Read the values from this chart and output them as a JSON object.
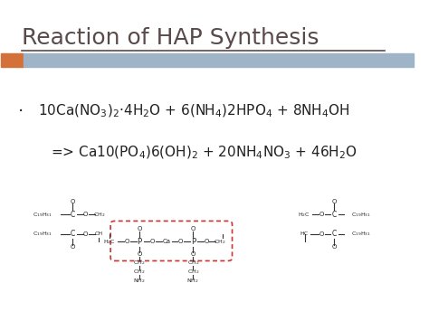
{
  "title": "Reaction of HAP Synthesis",
  "title_color": "#5a4a4a",
  "title_fontsize": 18,
  "accent_bar_orange": "#d4703a",
  "accent_bar_blue": "#a0b4c8",
  "bg_color": "#ffffff",
  "bullet": "·",
  "line1": "10Ca(NO$_3$)$_2$·4H$_2$O + 6(NH$_4$)2HPO$_4$ + 8NH$_4$OH",
  "line2": "=> Ca10(PO$_4$)6(OH)$_2$ + 20NH$_4$NO$_3$ + 46H$_2$O",
  "equation_fontsize": 11,
  "equation_color": "#222222"
}
